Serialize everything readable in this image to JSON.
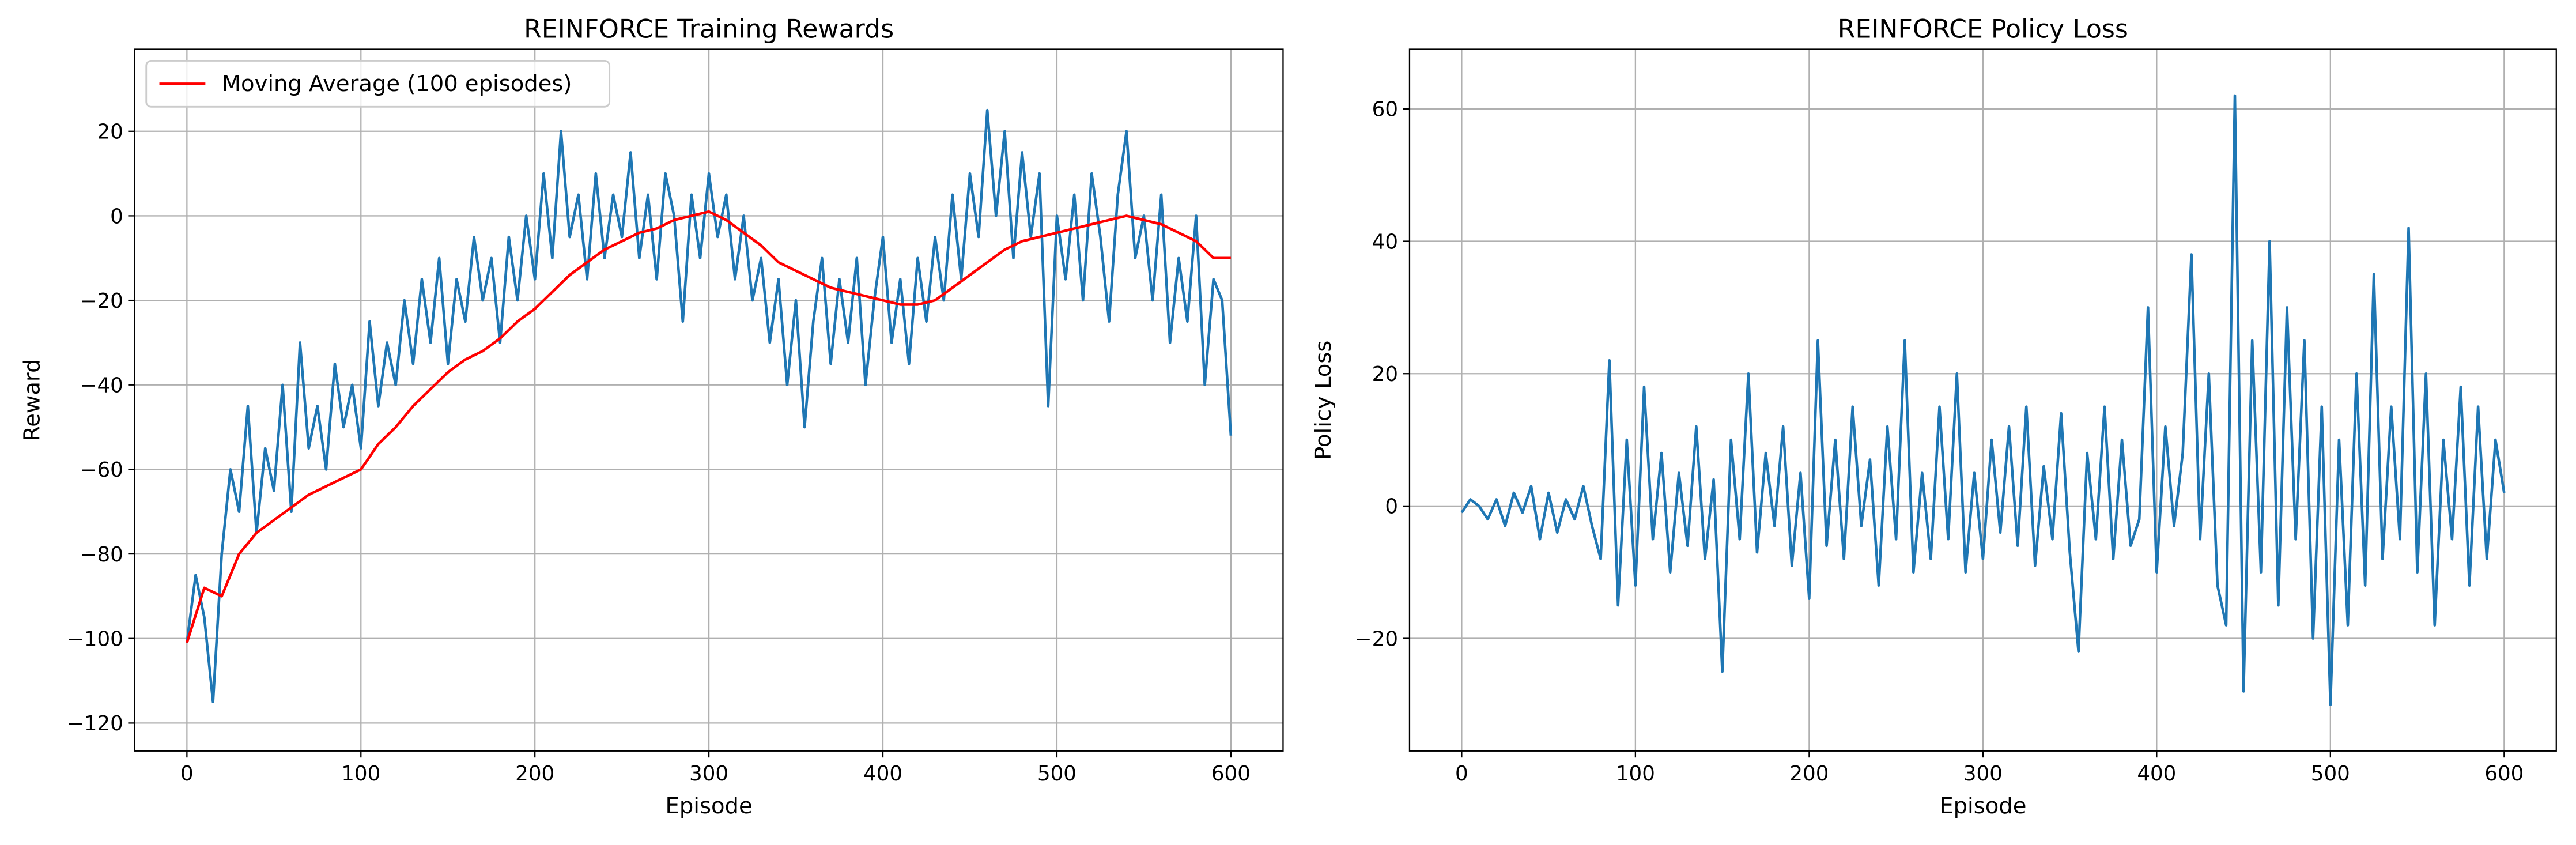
{
  "chart_data": [
    {
      "type": "line",
      "title": "REINFORCE Training Rewards",
      "xlabel": "Episode",
      "ylabel": "Reward",
      "xlim": [
        -30,
        630
      ],
      "ylim": [
        -126.6,
        39.4
      ],
      "xticks": [
        0,
        100,
        200,
        300,
        400,
        500,
        600
      ],
      "yticks": [
        {
          "value": -120,
          "label": "−120"
        },
        {
          "value": -100,
          "label": "−100"
        },
        {
          "value": -80,
          "label": "−80"
        },
        {
          "value": -60,
          "label": "−60"
        },
        {
          "value": -40,
          "label": "−40"
        },
        {
          "value": -20,
          "label": "−20"
        },
        0,
        20
      ],
      "grid": true,
      "legend": "upper left",
      "series": [
        {
          "color": "#1f77b4",
          "x": [
            0,
            5,
            10,
            15,
            20,
            25,
            30,
            35,
            40,
            45,
            50,
            55,
            60,
            65,
            70,
            75,
            80,
            85,
            90,
            95,
            100,
            105,
            110,
            115,
            120,
            125,
            130,
            135,
            140,
            145,
            150,
            155,
            160,
            165,
            170,
            175,
            180,
            185,
            190,
            195,
            200,
            205,
            210,
            215,
            220,
            225,
            230,
            235,
            240,
            245,
            250,
            255,
            260,
            265,
            270,
            275,
            280,
            285,
            290,
            295,
            300,
            305,
            310,
            315,
            320,
            325,
            330,
            335,
            340,
            345,
            350,
            355,
            360,
            365,
            370,
            375,
            380,
            385,
            390,
            395,
            400,
            405,
            410,
            415,
            420,
            425,
            430,
            435,
            440,
            445,
            450,
            455,
            460,
            465,
            470,
            475,
            480,
            485,
            490,
            495,
            500,
            505,
            510,
            515,
            520,
            525,
            530,
            535,
            540,
            545,
            550,
            555,
            560,
            565,
            570,
            575,
            580,
            585,
            590,
            595,
            600
          ],
          "values": [
            -101,
            -85,
            -95,
            -115,
            -80,
            -60,
            -70,
            -45,
            -75,
            -55,
            -65,
            -40,
            -70,
            -30,
            -55,
            -45,
            -60,
            -35,
            -50,
            -40,
            -55,
            -25,
            -45,
            -30,
            -40,
            -20,
            -35,
            -15,
            -30,
            -10,
            -35,
            -15,
            -25,
            -5,
            -20,
            -10,
            -30,
            -5,
            -20,
            0,
            -15,
            10,
            -10,
            20,
            -5,
            5,
            -15,
            10,
            -10,
            5,
            -5,
            15,
            -10,
            5,
            -15,
            10,
            0,
            -25,
            5,
            -10,
            10,
            -5,
            5,
            -15,
            0,
            -20,
            -10,
            -30,
            -15,
            -40,
            -20,
            -50,
            -25,
            -10,
            -35,
            -15,
            -30,
            -10,
            -40,
            -20,
            -5,
            -30,
            -15,
            -35,
            -10,
            -25,
            -5,
            -20,
            5,
            -15,
            10,
            -5,
            25,
            0,
            20,
            -10,
            15,
            -5,
            10,
            -45,
            0,
            -15,
            5,
            -20,
            10,
            -5,
            -25,
            5,
            20,
            -10,
            0,
            -20,
            5,
            -30,
            -10,
            -25,
            0,
            -40,
            -15,
            -20,
            -52
          ]
        },
        {
          "name": "Moving Average (100 episodes)",
          "color": "#ff0000",
          "x": [
            0,
            10,
            20,
            30,
            40,
            50,
            60,
            70,
            80,
            90,
            100,
            110,
            120,
            130,
            140,
            150,
            160,
            170,
            180,
            190,
            200,
            210,
            220,
            230,
            240,
            250,
            260,
            270,
            280,
            290,
            300,
            310,
            320,
            330,
            340,
            350,
            360,
            370,
            380,
            390,
            400,
            410,
            420,
            430,
            440,
            450,
            460,
            470,
            480,
            490,
            500,
            510,
            520,
            530,
            540,
            550,
            560,
            570,
            580,
            590,
            600
          ],
          "values": [
            -101,
            -88,
            -90,
            -80,
            -75,
            -72,
            -69,
            -66,
            -64,
            -62,
            -60,
            -54,
            -50,
            -45,
            -41,
            -37,
            -34,
            -32,
            -29,
            -25,
            -22,
            -18,
            -14,
            -11,
            -8,
            -6,
            -4,
            -3,
            -1,
            0,
            1,
            -1,
            -4,
            -7,
            -11,
            -13,
            -15,
            -17,
            -18,
            -19,
            -20,
            -21,
            -21,
            -20,
            -17,
            -14,
            -11,
            -8,
            -6,
            -5,
            -4,
            -3,
            -2,
            -1,
            0,
            -1,
            -2,
            -4,
            -6,
            -10,
            -10
          ]
        }
      ]
    },
    {
      "type": "line",
      "title": "REINFORCE Policy Loss",
      "xlabel": "Episode",
      "ylabel": "Policy Loss",
      "xlim": [
        -30,
        630
      ],
      "ylim": [
        -37,
        69
      ],
      "xticks": [
        0,
        100,
        200,
        300,
        400,
        500,
        600
      ],
      "yticks": [
        {
          "value": -20,
          "label": "−20"
        },
        0,
        20,
        40,
        60
      ],
      "grid": true,
      "series": [
        {
          "color": "#1f77b4",
          "x": [
            0,
            5,
            10,
            15,
            20,
            25,
            30,
            35,
            40,
            45,
            50,
            55,
            60,
            65,
            70,
            75,
            80,
            85,
            90,
            95,
            100,
            105,
            110,
            115,
            120,
            125,
            130,
            135,
            140,
            145,
            150,
            155,
            160,
            165,
            170,
            175,
            180,
            185,
            190,
            195,
            200,
            205,
            210,
            215,
            220,
            225,
            230,
            235,
            240,
            245,
            250,
            255,
            260,
            265,
            270,
            275,
            280,
            285,
            290,
            295,
            300,
            305,
            310,
            315,
            320,
            325,
            330,
            335,
            340,
            345,
            350,
            355,
            360,
            365,
            370,
            375,
            380,
            385,
            390,
            395,
            400,
            405,
            410,
            415,
            420,
            425,
            430,
            435,
            440,
            445,
            450,
            455,
            460,
            465,
            470,
            475,
            480,
            485,
            490,
            495,
            500,
            505,
            510,
            515,
            520,
            525,
            530,
            535,
            540,
            545,
            550,
            555,
            560,
            565,
            570,
            575,
            580,
            585,
            590,
            595,
            600
          ],
          "values": [
            -1,
            1,
            0,
            -2,
            1,
            -3,
            2,
            -1,
            3,
            -5,
            2,
            -4,
            1,
            -2,
            3,
            -3,
            -8,
            22,
            -15,
            10,
            -12,
            18,
            -5,
            8,
            -10,
            5,
            -6,
            12,
            -8,
            4,
            -25,
            10,
            -5,
            20,
            -7,
            8,
            -3,
            12,
            -9,
            5,
            -14,
            25,
            -6,
            10,
            -8,
            15,
            -3,
            7,
            -12,
            12,
            -5,
            25,
            -10,
            5,
            -8,
            15,
            -5,
            20,
            -10,
            5,
            -8,
            10,
            -4,
            12,
            -6,
            15,
            -9,
            6,
            -5,
            14,
            -7,
            -22,
            8,
            -5,
            15,
            -8,
            10,
            -6,
            -2,
            30,
            -10,
            12,
            -3,
            8,
            38,
            -5,
            20,
            -12,
            -18,
            62,
            -28,
            25,
            -10,
            40,
            -15,
            30,
            -5,
            25,
            -20,
            15,
            -30,
            10,
            -18,
            20,
            -12,
            35,
            -8,
            15,
            -5,
            42,
            -10,
            20,
            -18,
            10,
            -5,
            18,
            -12,
            15,
            -8,
            10,
            2
          ]
        }
      ]
    }
  ]
}
